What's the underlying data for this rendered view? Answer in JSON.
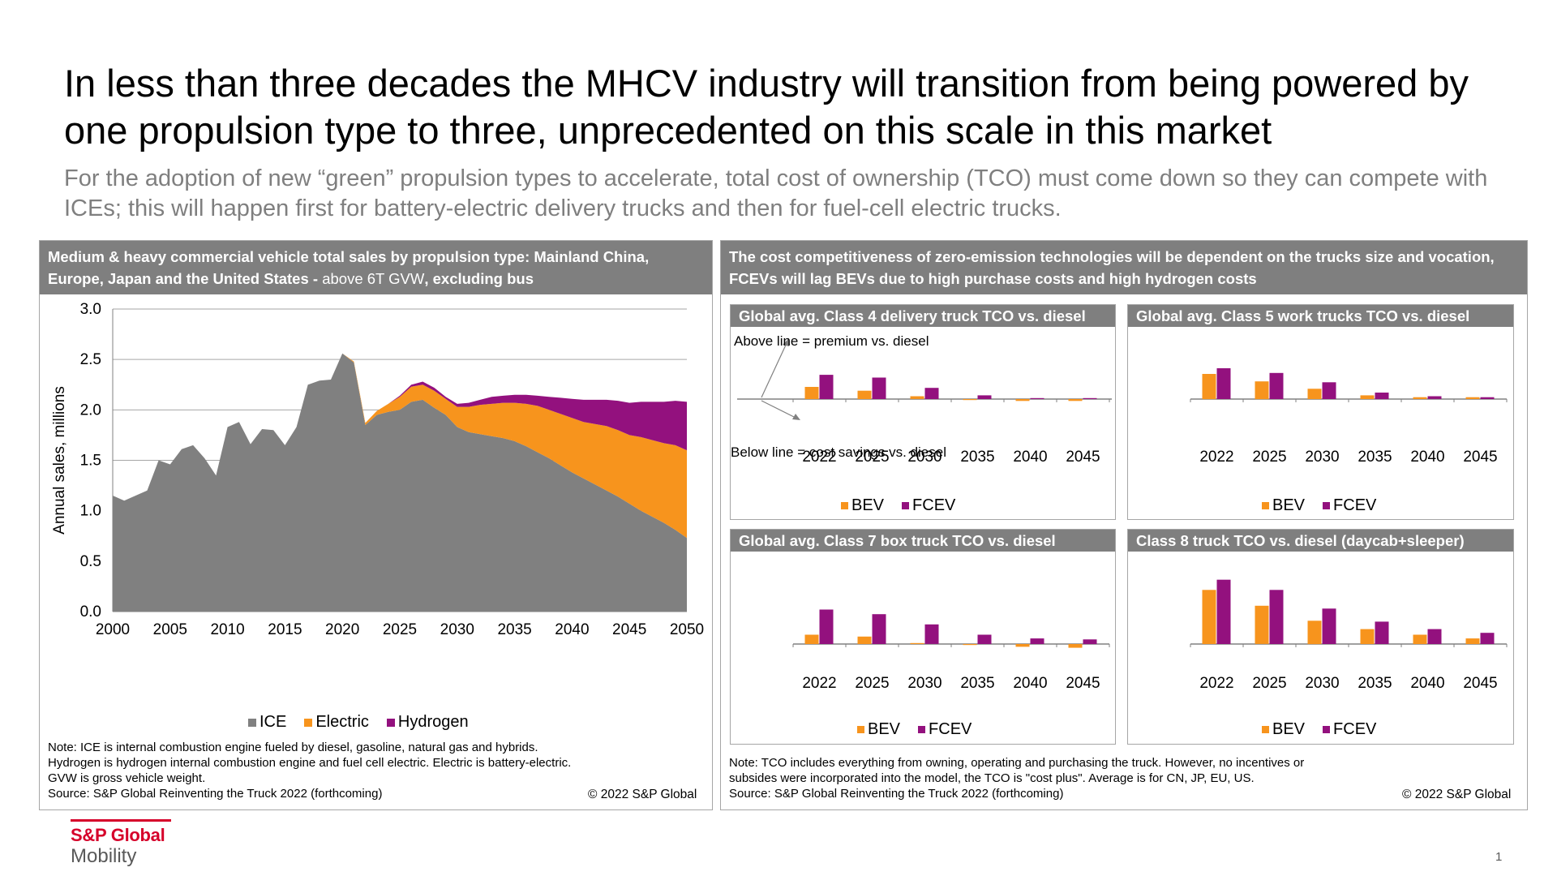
{
  "title": "In less than three decades the MHCV industry will transition from being powered by one propulsion type to three, unprecedented on this scale in this market",
  "subtitle": "For the adoption of new “green” propulsion types to accelerate, total cost of ownership (TCO) must come down so they can compete with ICEs; this will happen first for battery-electric delivery trucks and then for fuel-cell electric trucks.",
  "left_panel": {
    "header_bold_1": "Medium & heavy commercial vehicle total sales by propulsion type: Mainland China, Europe, Japan and the United States - ",
    "header_normal": "above 6T GVW",
    "header_bold_2": ", excluding bus",
    "note_lines": [
      "Note: ICE is internal combustion engine fueled by diesel, gasoline, natural gas and hybrids.",
      "Hydrogen is hydrogen internal combustion engine and fuel cell electric. Electric is battery-electric.",
      "GVW is gross vehicle weight.",
      "Source: S&P Global Reinventing the Truck 2022 (forthcoming)"
    ],
    "copyright": "© 2022 S&P Global"
  },
  "right_panel": {
    "header": "The cost competitiveness of zero-emission technologies will be dependent on the trucks size and vocation, FCEVs will lag BEVs due to high purchase costs and high hydrogen costs",
    "annotation_above": "Above line = premium vs. diesel",
    "annotation_below": "Below line = cost savings vs. diesel",
    "note_lines": [
      "Note: TCO includes everything from owning, operating and purchasing the truck. However, no incentives or",
      "subsides were incorporated into the model, the TCO is \"cost plus\". Average is for CN, JP, EU, US.",
      "Source: S&P Global Reinventing the Truck 2022 (forthcoming)"
    ],
    "copyright": "© 2022 S&P Global"
  },
  "logo": {
    "brand": "S&P Global",
    "sub": "Mobility"
  },
  "page_number": "1",
  "colors": {
    "ice": "#808080",
    "electric": "#f7941d",
    "hydrogen": "#93117e",
    "bev": "#f7941d",
    "fcev": "#93117e",
    "header_bg": "#7f7f7f"
  },
  "chart_data": [
    {
      "type": "area",
      "ylabel": "Annual sales, millions",
      "xlabel": "",
      "xlim": [
        2000,
        2050
      ],
      "ylim": [
        0,
        3.0
      ],
      "xticks": [
        2000,
        2005,
        2010,
        2015,
        2020,
        2025,
        2030,
        2035,
        2040,
        2045,
        2050
      ],
      "yticks": [
        "0.0",
        "0.5",
        "1.0",
        "1.5",
        "2.0",
        "2.5",
        "3.0"
      ],
      "stacked": true,
      "grid": true,
      "legend_position": "bottom",
      "x": [
        2000,
        2001,
        2002,
        2003,
        2004,
        2005,
        2006,
        2007,
        2008,
        2009,
        2010,
        2011,
        2012,
        2013,
        2014,
        2015,
        2016,
        2017,
        2018,
        2019,
        2020,
        2021,
        2022,
        2023,
        2024,
        2025,
        2026,
        2027,
        2028,
        2029,
        2030,
        2031,
        2032,
        2033,
        2034,
        2035,
        2036,
        2037,
        2038,
        2039,
        2040,
        2041,
        2042,
        2043,
        2044,
        2045,
        2046,
        2047,
        2048,
        2049,
        2050
      ],
      "series": [
        {
          "name": "ICE",
          "values": [
            1.15,
            1.1,
            1.15,
            1.2,
            1.5,
            1.46,
            1.61,
            1.65,
            1.52,
            1.35,
            1.83,
            1.88,
            1.66,
            1.81,
            1.8,
            1.65,
            1.83,
            2.25,
            2.29,
            2.3,
            2.56,
            2.47,
            1.85,
            1.95,
            1.98,
            2.0,
            2.08,
            2.1,
            2.02,
            1.95,
            1.83,
            1.78,
            1.76,
            1.74,
            1.72,
            1.69,
            1.64,
            1.58,
            1.52,
            1.45,
            1.38,
            1.32,
            1.26,
            1.2,
            1.14,
            1.07,
            1.0,
            0.94,
            0.88,
            0.81,
            0.73
          ]
        },
        {
          "name": "Electric",
          "values": [
            0,
            0,
            0,
            0,
            0,
            0,
            0,
            0,
            0,
            0,
            0,
            0,
            0,
            0,
            0,
            0,
            0,
            0,
            0,
            0,
            0,
            0.01,
            0.02,
            0.04,
            0.08,
            0.13,
            0.15,
            0.15,
            0.17,
            0.16,
            0.2,
            0.25,
            0.29,
            0.32,
            0.35,
            0.38,
            0.42,
            0.46,
            0.48,
            0.51,
            0.54,
            0.56,
            0.6,
            0.64,
            0.66,
            0.68,
            0.73,
            0.76,
            0.79,
            0.84,
            0.87
          ]
        },
        {
          "name": "Hydrogen",
          "values": [
            0,
            0,
            0,
            0,
            0,
            0,
            0,
            0,
            0,
            0,
            0,
            0,
            0,
            0,
            0,
            0,
            0,
            0,
            0,
            0,
            0,
            0,
            0,
            0,
            0,
            0.01,
            0.02,
            0.03,
            0.03,
            0.02,
            0.03,
            0.04,
            0.05,
            0.07,
            0.07,
            0.08,
            0.09,
            0.1,
            0.13,
            0.16,
            0.19,
            0.22,
            0.24,
            0.26,
            0.29,
            0.32,
            0.35,
            0.38,
            0.41,
            0.44,
            0.48
          ]
        }
      ]
    },
    {
      "type": "bar",
      "title": "Global avg. Class 4 delivery truck TCO vs. diesel",
      "categories": [
        "2022",
        "2025",
        "2030",
        "2035",
        "2040",
        "2045"
      ],
      "series": [
        {
          "name": "BEV",
          "values": [
            0.13,
            0.09,
            0.03,
            -0.01,
            -0.02,
            -0.02
          ]
        },
        {
          "name": "FCEV",
          "values": [
            0.26,
            0.23,
            0.12,
            0.04,
            0.01,
            0.01
          ]
        }
      ]
    },
    {
      "type": "bar",
      "title": "Global avg. Class 5 work trucks TCO vs. diesel",
      "categories": [
        "2022",
        "2025",
        "2030",
        "2035",
        "2040",
        "2045"
      ],
      "series": [
        {
          "name": "BEV",
          "values": [
            0.27,
            0.19,
            0.11,
            0.04,
            0.02,
            0.02
          ]
        },
        {
          "name": "FCEV",
          "values": [
            0.33,
            0.28,
            0.18,
            0.07,
            0.03,
            0.02
          ]
        }
      ]
    },
    {
      "type": "bar",
      "title": "Global avg. Class 7 box truck TCO vs. diesel",
      "categories": [
        "2022",
        "2025",
        "2030",
        "2035",
        "2040",
        "2045"
      ],
      "series": [
        {
          "name": "BEV",
          "values": [
            0.1,
            0.08,
            0.01,
            -0.01,
            -0.03,
            -0.04
          ]
        },
        {
          "name": "FCEV",
          "values": [
            0.37,
            0.32,
            0.21,
            0.1,
            0.06,
            0.05
          ]
        }
      ]
    },
    {
      "type": "bar",
      "title": "Class 8  truck TCO vs. diesel (daycab+sleeper)",
      "categories": [
        "2022",
        "2025",
        "2030",
        "2035",
        "2040",
        "2045"
      ],
      "series": [
        {
          "name": "BEV",
          "values": [
            0.58,
            0.41,
            0.25,
            0.16,
            0.1,
            0.06
          ]
        },
        {
          "name": "FCEV",
          "values": [
            0.69,
            0.58,
            0.38,
            0.24,
            0.16,
            0.12
          ]
        }
      ]
    }
  ]
}
